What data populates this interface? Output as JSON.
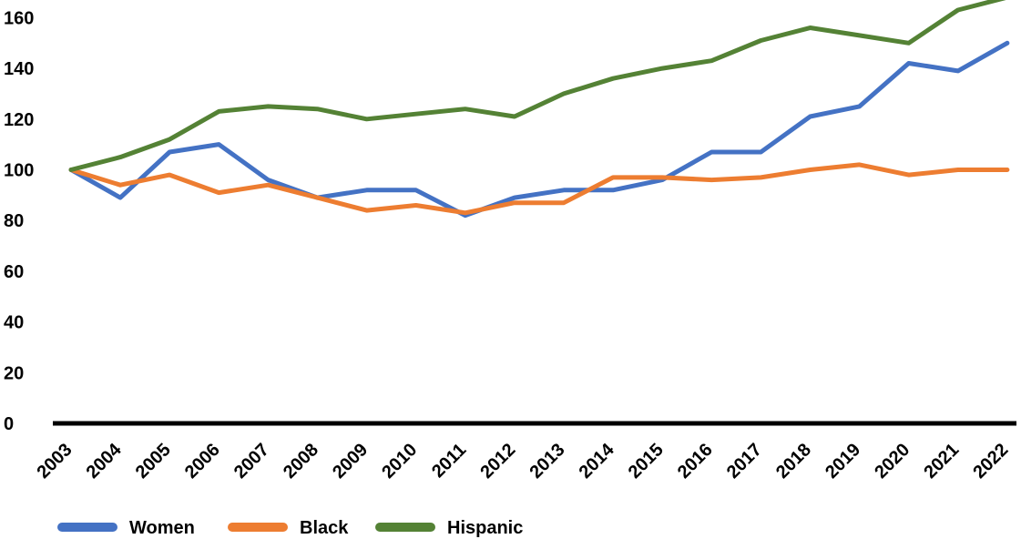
{
  "chart_data": {
    "type": "line",
    "title": "",
    "xlabel": "",
    "ylabel": "",
    "ylim": [
      0,
      170
    ],
    "y_ticks": [
      "0",
      "20",
      "40",
      "60",
      "80",
      "100",
      "120",
      "140",
      "160"
    ],
    "categories": [
      "2003",
      "2004",
      "2005",
      "2006",
      "2007",
      "2008",
      "2009",
      "2010",
      "2011",
      "2012",
      "2013",
      "2014",
      "2015",
      "2016",
      "2017",
      "2018",
      "2019",
      "2020",
      "2021",
      "2022"
    ],
    "grid": false,
    "legend_position": "bottom-left",
    "series": [
      {
        "name": "Women",
        "color": "#4472C4",
        "values": [
          100,
          89,
          107,
          110,
          96,
          89,
          92,
          92,
          82,
          89,
          92,
          92,
          96,
          107,
          107,
          121,
          125,
          142,
          139,
          150
        ]
      },
      {
        "name": "Black",
        "color": "#ED7D31",
        "values": [
          100,
          94,
          98,
          91,
          94,
          89,
          84,
          86,
          83,
          87,
          87,
          97,
          97,
          96,
          97,
          100,
          102,
          98,
          100,
          100
        ]
      },
      {
        "name": "Hispanic",
        "color": "#548235",
        "values": [
          100,
          105,
          112,
          123,
          125,
          124,
          120,
          122,
          124,
          121,
          130,
          136,
          140,
          143,
          151,
          156,
          153,
          150,
          163,
          168
        ]
      }
    ]
  }
}
